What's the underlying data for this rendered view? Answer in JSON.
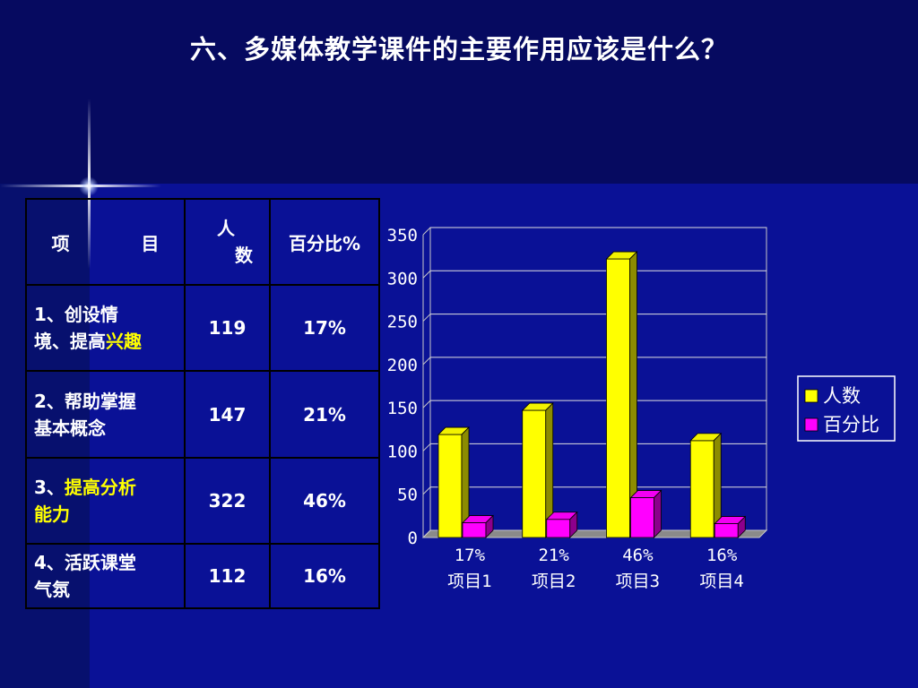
{
  "slide_title": "六、多媒体教学课件的主要作用应该是什么？",
  "table": {
    "headers": {
      "item_a": "项",
      "item_b": "目",
      "people_a": "人",
      "people_b": "数",
      "percent": "百分比%"
    },
    "rows": [
      {
        "num": "1、",
        "pre": "创设情",
        "line2": "境、提高",
        "hl1": "",
        "hl2": "兴趣",
        "count": "119",
        "pct": "17%"
      },
      {
        "num": "2、",
        "pre": "帮助掌握",
        "line2": "基本概念",
        "hl1": "",
        "hl2": "",
        "count": "147",
        "pct": "21%"
      },
      {
        "num": "3、",
        "pre": "",
        "line2": "",
        "hl1": "提高分析",
        "hl2": "能力",
        "count": "322",
        "pct": "46%"
      },
      {
        "num": "4、",
        "pre": "活跃课堂",
        "line2": "气氛",
        "hl1": "",
        "hl2": "",
        "count": "112",
        "pct": "16%"
      }
    ]
  },
  "chart_data": {
    "type": "bar",
    "categories": [
      "项目1",
      "项目2",
      "项目3",
      "项目4"
    ],
    "category_top_labels": [
      "17%",
      "21%",
      "46%",
      "16%"
    ],
    "series": [
      {
        "name": "人数",
        "values": [
          119,
          147,
          322,
          112
        ],
        "color": "#ffff00"
      },
      {
        "name": "百分比",
        "values": [
          17,
          21,
          46,
          16
        ],
        "color": "#ff00ff"
      }
    ],
    "ylim": [
      0,
      350
    ],
    "yticks": [
      0,
      50,
      100,
      150,
      200,
      250,
      300,
      350
    ],
    "grid": true,
    "legend": "right",
    "three_d": true
  }
}
